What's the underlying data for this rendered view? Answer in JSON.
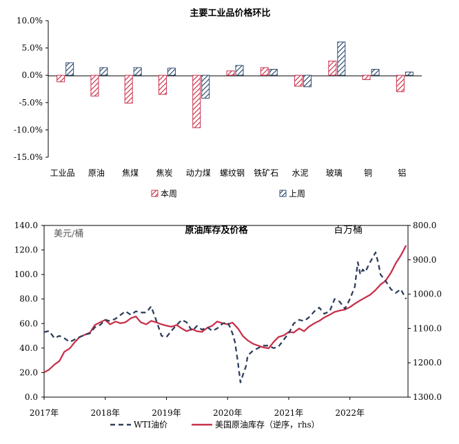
{
  "chart_data": [
    {
      "type": "bar",
      "title": "主要工业品价格环比",
      "categories": [
        "工业品",
        "原油",
        "焦煤",
        "焦炭",
        "动力煤",
        "螺纹钢",
        "铁矿石",
        "水泥",
        "玻璃",
        "铜",
        "铝"
      ],
      "series": [
        {
          "name": "本周",
          "color": "#c8304a",
          "values": [
            -1.2,
            -3.8,
            -5.1,
            -3.5,
            -9.6,
            0.8,
            1.4,
            -2.0,
            2.6,
            -0.8,
            -3.0
          ]
        },
        {
          "name": "上周",
          "color": "#2f4a6e",
          "values": [
            2.3,
            1.4,
            1.4,
            1.3,
            -4.2,
            1.8,
            1.1,
            -2.1,
            6.1,
            1.1,
            0.6
          ]
        }
      ],
      "ylim": [
        -15,
        10
      ],
      "yticks": [
        "10.0%",
        "5.0%",
        "0.0%",
        "-5.0%",
        "-10.0%",
        "-15.0%"
      ],
      "ytick_values": [
        10,
        5,
        0,
        -5,
        -10,
        -15
      ],
      "legend_position": "bottom"
    },
    {
      "type": "line",
      "title": "原油库存及价格",
      "ylabel_left": "美元/桶",
      "ylabel_right": "百万桶",
      "ylim_left": [
        0,
        140
      ],
      "ylim_right": [
        800,
        1300
      ],
      "right_axis_inverted": true,
      "yticks_left": [
        "0.0",
        "20.0",
        "40.0",
        "60.0",
        "80.0",
        "100.0",
        "120.0",
        "140.0"
      ],
      "ytick_left_values": [
        0,
        20,
        40,
        60,
        80,
        100,
        120,
        140
      ],
      "yticks_right": [
        "800.0",
        "900.0",
        "1000.0",
        "1100.0",
        "1200.0",
        "1300.0"
      ],
      "ytick_right_values": [
        800,
        900,
        1000,
        1100,
        1200,
        1300
      ],
      "xlim": [
        2017.0,
        2022.95
      ],
      "xticks": [
        "2017年",
        "2018年",
        "2019年",
        "2020年",
        "2021年",
        "2022年"
      ],
      "xtick_values": [
        2017,
        2018,
        2019,
        2020,
        2021,
        2022
      ],
      "series": [
        {
          "name": "WTI油价",
          "axis": "left",
          "style": "dashed",
          "color": "#2f3e5c",
          "x": [
            2017.0,
            2017.08,
            2017.17,
            2017.25,
            2017.33,
            2017.42,
            2017.5,
            2017.58,
            2017.67,
            2017.75,
            2017.83,
            2017.92,
            2018.0,
            2018.08,
            2018.17,
            2018.25,
            2018.33,
            2018.42,
            2018.5,
            2018.58,
            2018.67,
            2018.75,
            2018.83,
            2018.92,
            2019.0,
            2019.08,
            2019.17,
            2019.25,
            2019.33,
            2019.42,
            2019.5,
            2019.58,
            2019.67,
            2019.75,
            2019.83,
            2019.92,
            2020.0,
            2020.04,
            2020.08,
            2020.12,
            2020.17,
            2020.21,
            2020.25,
            2020.3,
            2020.33,
            2020.42,
            2020.5,
            2020.58,
            2020.67,
            2020.75,
            2020.83,
            2020.92,
            2021.0,
            2021.08,
            2021.17,
            2021.25,
            2021.33,
            2021.42,
            2021.5,
            2021.58,
            2021.67,
            2021.75,
            2021.83,
            2021.92,
            2022.0,
            2022.08,
            2022.13,
            2022.17,
            2022.21,
            2022.25,
            2022.33,
            2022.42,
            2022.47,
            2022.5,
            2022.58,
            2022.67,
            2022.75,
            2022.83,
            2022.92
          ],
          "values": [
            53,
            54,
            48,
            50,
            48,
            45,
            47,
            49,
            51,
            52,
            57,
            59,
            63,
            62,
            64,
            67,
            70,
            67,
            70,
            69,
            69,
            74,
            63,
            50,
            49,
            54,
            59,
            63,
            61,
            54,
            58,
            55,
            57,
            54,
            56,
            60,
            61,
            57,
            52,
            45,
            28,
            12,
            18,
            25,
            34,
            38,
            40,
            42,
            42,
            40,
            41,
            47,
            52,
            60,
            63,
            62,
            65,
            70,
            73,
            68,
            70,
            80,
            78,
            72,
            80,
            90,
            110,
            100,
            104,
            102,
            110,
            118,
            108,
            100,
            95,
            88,
            85,
            88,
            80
          ]
        },
        {
          "name": "美国原油库存（逆序，rhs）",
          "axis": "right",
          "style": "solid",
          "color": "#c8304a",
          "x": [
            2017.0,
            2017.08,
            2017.17,
            2017.25,
            2017.33,
            2017.42,
            2017.5,
            2017.58,
            2017.67,
            2017.75,
            2017.83,
            2017.92,
            2018.0,
            2018.08,
            2018.17,
            2018.25,
            2018.33,
            2018.42,
            2018.5,
            2018.58,
            2018.67,
            2018.75,
            2018.83,
            2018.92,
            2019.0,
            2019.08,
            2019.17,
            2019.25,
            2019.33,
            2019.42,
            2019.5,
            2019.58,
            2019.67,
            2019.75,
            2019.83,
            2019.92,
            2020.0,
            2020.08,
            2020.17,
            2020.25,
            2020.33,
            2020.42,
            2020.5,
            2020.58,
            2020.67,
            2020.75,
            2020.83,
            2020.92,
            2021.0,
            2021.08,
            2021.17,
            2021.25,
            2021.33,
            2021.42,
            2021.5,
            2021.58,
            2021.67,
            2021.75,
            2021.83,
            2021.92,
            2022.0,
            2022.08,
            2022.17,
            2022.25,
            2022.33,
            2022.42,
            2022.5,
            2022.58,
            2022.67,
            2022.75,
            2022.83,
            2022.92
          ],
          "values": [
            1228,
            1220,
            1205,
            1195,
            1168,
            1158,
            1140,
            1125,
            1118,
            1112,
            1090,
            1082,
            1075,
            1088,
            1080,
            1085,
            1082,
            1070,
            1065,
            1082,
            1088,
            1078,
            1082,
            1088,
            1092,
            1095,
            1090,
            1100,
            1108,
            1102,
            1108,
            1110,
            1098,
            1092,
            1080,
            1085,
            1088,
            1083,
            1100,
            1122,
            1135,
            1145,
            1150,
            1155,
            1158,
            1140,
            1125,
            1120,
            1110,
            1112,
            1100,
            1108,
            1095,
            1085,
            1078,
            1068,
            1060,
            1052,
            1048,
            1045,
            1038,
            1028,
            1018,
            1010,
            1002,
            988,
            972,
            962,
            938,
            910,
            888,
            858
          ]
        }
      ]
    }
  ]
}
